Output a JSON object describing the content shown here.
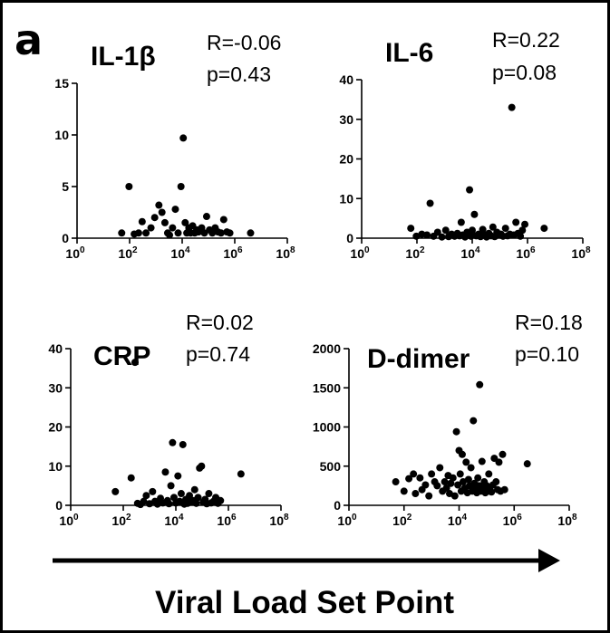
{
  "panel_label": "a",
  "x_axis_title": "Viral Load Set Point",
  "colors": {
    "marker": "#000000",
    "text": "#000000",
    "background": "#ffffff"
  },
  "chart_data": [
    {
      "type": "scatter",
      "title": "IL-1β",
      "stat_r": "R=-0.06",
      "stat_p": "p=0.43",
      "xscale": "log",
      "xlim": [
        1,
        100000000
      ],
      "x_ticks": [
        "0",
        "2",
        "4",
        "6",
        "8"
      ],
      "ylim": [
        0,
        15
      ],
      "y_ticks": [
        "0",
        "5",
        "10",
        "15"
      ],
      "points": [
        [
          50,
          0.5
        ],
        [
          95,
          5.0
        ],
        [
          150,
          0.4
        ],
        [
          220,
          0.5
        ],
        [
          300,
          1.6
        ],
        [
          420,
          0.5
        ],
        [
          650,
          1.0
        ],
        [
          900,
          2.0
        ],
        [
          1300,
          3.2
        ],
        [
          1700,
          2.5
        ],
        [
          2200,
          1.5
        ],
        [
          2800,
          0.5
        ],
        [
          3300,
          0.3
        ],
        [
          4300,
          1.0
        ],
        [
          5500,
          2.8
        ],
        [
          7000,
          0.5
        ],
        [
          9000,
          5.0
        ],
        [
          11000,
          9.7
        ],
        [
          13000,
          1.5
        ],
        [
          15000,
          0.5
        ],
        [
          18000,
          1.0
        ],
        [
          21000,
          0.5
        ],
        [
          25000,
          1.2
        ],
        [
          30000,
          0.5
        ],
        [
          36000,
          0.8
        ],
        [
          42000,
          0.6
        ],
        [
          55000,
          1.0
        ],
        [
          70000,
          0.5
        ],
        [
          85000,
          2.1
        ],
        [
          110000,
          0.8
        ],
        [
          140000,
          0.5
        ],
        [
          180000,
          1.0
        ],
        [
          230000,
          0.6
        ],
        [
          300000,
          0.5
        ],
        [
          380000,
          1.8
        ],
        [
          500000,
          0.6
        ],
        [
          650000,
          0.5
        ],
        [
          4000000,
          0.5
        ]
      ]
    },
    {
      "type": "scatter",
      "title": "IL-6",
      "stat_r": "R=0.22",
      "stat_p": "p=0.08",
      "xscale": "log",
      "xlim": [
        1,
        100000000
      ],
      "x_ticks": [
        "0",
        "2",
        "4",
        "6",
        "8"
      ],
      "ylim": [
        0,
        40
      ],
      "y_ticks": [
        "0",
        "10",
        "20",
        "30",
        "40"
      ],
      "points": [
        [
          60,
          2.5
        ],
        [
          95,
          0.5
        ],
        [
          150,
          1.0
        ],
        [
          230,
          0.8
        ],
        [
          300,
          8.8
        ],
        [
          400,
          0.5
        ],
        [
          560,
          1.5
        ],
        [
          800,
          0.3
        ],
        [
          1100,
          2.0
        ],
        [
          1400,
          0.4
        ],
        [
          1800,
          1.0
        ],
        [
          2300,
          0.5
        ],
        [
          2900,
          1.2
        ],
        [
          3500,
          0.6
        ],
        [
          4000,
          4.0
        ],
        [
          4500,
          0.8
        ],
        [
          5500,
          0.3
        ],
        [
          6500,
          1.5
        ],
        [
          8000,
          12.2
        ],
        [
          9000,
          0.5
        ],
        [
          10000,
          2.0
        ],
        [
          12000,
          6.0
        ],
        [
          14000,
          0.6
        ],
        [
          17000,
          1.0
        ],
        [
          20000,
          0.4
        ],
        [
          24000,
          2.2
        ],
        [
          28000,
          0.8
        ],
        [
          33000,
          0.3
        ],
        [
          40000,
          1.2
        ],
        [
          48000,
          0.6
        ],
        [
          56000,
          2.8
        ],
        [
          65000,
          0.4
        ],
        [
          78000,
          1.5
        ],
        [
          90000,
          0.8
        ],
        [
          110000,
          1.0
        ],
        [
          130000,
          0.5
        ],
        [
          160000,
          2.5
        ],
        [
          190000,
          0.6
        ],
        [
          230000,
          1.0
        ],
        [
          270000,
          33.0
        ],
        [
          320000,
          0.8
        ],
        [
          380000,
          4.0
        ],
        [
          450000,
          1.2
        ],
        [
          550000,
          0.5
        ],
        [
          650000,
          2.0
        ],
        [
          800000,
          3.5
        ],
        [
          4000000,
          2.5
        ]
      ]
    },
    {
      "type": "scatter",
      "title": "CRP",
      "stat_r": "R=0.02",
      "stat_p": "p=0.74",
      "xscale": "log",
      "xlim": [
        1,
        100000000
      ],
      "x_ticks": [
        "0",
        "2",
        "4",
        "6",
        "8"
      ],
      "ylim": [
        0,
        40
      ],
      "y_ticks": [
        "0",
        "10",
        "20",
        "30",
        "40"
      ],
      "points": [
        [
          50,
          3.5
        ],
        [
          200,
          7.0
        ],
        [
          280,
          36.5
        ],
        [
          350,
          0.5
        ],
        [
          450,
          0.2
        ],
        [
          600,
          1.0
        ],
        [
          750,
          2.5
        ],
        [
          1000,
          0.4
        ],
        [
          1300,
          3.5
        ],
        [
          1600,
          1.0
        ],
        [
          2000,
          0.3
        ],
        [
          2600,
          1.8
        ],
        [
          3200,
          0.6
        ],
        [
          4000,
          8.5
        ],
        [
          4800,
          1.2
        ],
        [
          5500,
          0.4
        ],
        [
          6500,
          5.0
        ],
        [
          7500,
          16.0
        ],
        [
          8500,
          2.0
        ],
        [
          10000,
          0.6
        ],
        [
          12000,
          7.5
        ],
        [
          14000,
          1.0
        ],
        [
          16000,
          3.0
        ],
        [
          18500,
          15.5
        ],
        [
          21000,
          0.3
        ],
        [
          24000,
          1.5
        ],
        [
          28000,
          0.5
        ],
        [
          33000,
          2.5
        ],
        [
          38000,
          0.8
        ],
        [
          45000,
          1.2
        ],
        [
          52000,
          4.0
        ],
        [
          60000,
          0.5
        ],
        [
          70000,
          2.0
        ],
        [
          80000,
          9.5
        ],
        [
          95000,
          10.0
        ],
        [
          110000,
          0.8
        ],
        [
          130000,
          1.5
        ],
        [
          150000,
          0.4
        ],
        [
          180000,
          3.0
        ],
        [
          220000,
          0.6
        ],
        [
          270000,
          1.0
        ],
        [
          330000,
          2.0
        ],
        [
          400000,
          0.5
        ],
        [
          500000,
          1.2
        ],
        [
          3000000,
          8.0
        ]
      ]
    },
    {
      "type": "scatter",
      "title": "D-dimer",
      "stat_r": "R=0.18",
      "stat_p": "p=0.10",
      "xscale": "log",
      "xlim": [
        1,
        100000000
      ],
      "x_ticks": [
        "0",
        "2",
        "4",
        "6",
        "8"
      ],
      "ylim": [
        0,
        2000
      ],
      "y_ticks": [
        "0",
        "500",
        "1000",
        "1500",
        "2000"
      ],
      "points": [
        [
          50,
          300
        ],
        [
          100,
          180
        ],
        [
          150,
          340
        ],
        [
          220,
          400
        ],
        [
          260,
          150
        ],
        [
          380,
          350
        ],
        [
          450,
          200
        ],
        [
          600,
          260
        ],
        [
          800,
          120
        ],
        [
          1000,
          400
        ],
        [
          1300,
          300
        ],
        [
          1600,
          250
        ],
        [
          2000,
          480
        ],
        [
          2500,
          180
        ],
        [
          3000,
          300
        ],
        [
          3500,
          220
        ],
        [
          4000,
          380
        ],
        [
          4500,
          150
        ],
        [
          5000,
          280
        ],
        [
          6000,
          350
        ],
        [
          7000,
          120
        ],
        [
          8000,
          940
        ],
        [
          9000,
          260
        ],
        [
          10000,
          700
        ],
        [
          11000,
          400
        ],
        [
          12000,
          180
        ],
        [
          13000,
          650
        ],
        [
          14000,
          300
        ],
        [
          16000,
          220
        ],
        [
          18000,
          550
        ],
        [
          20000,
          160
        ],
        [
          22000,
          330
        ],
        [
          24000,
          250
        ],
        [
          27000,
          480
        ],
        [
          30000,
          180
        ],
        [
          33000,
          1080
        ],
        [
          36000,
          280
        ],
        [
          40000,
          220
        ],
        [
          44000,
          160
        ],
        [
          48000,
          350
        ],
        [
          52000,
          250
        ],
        [
          56000,
          1540
        ],
        [
          62000,
          180
        ],
        [
          68000,
          560
        ],
        [
          75000,
          220
        ],
        [
          82000,
          300
        ],
        [
          90000,
          160
        ],
        [
          100000,
          250
        ],
        [
          110000,
          180
        ],
        [
          120000,
          400
        ],
        [
          130000,
          220
        ],
        [
          150000,
          170
        ],
        [
          170000,
          260
        ],
        [
          190000,
          600
        ],
        [
          220000,
          300
        ],
        [
          250000,
          200
        ],
        [
          280000,
          550
        ],
        [
          320000,
          180
        ],
        [
          380000,
          650
        ],
        [
          450000,
          200
        ],
        [
          3000000,
          530
        ]
      ]
    }
  ]
}
